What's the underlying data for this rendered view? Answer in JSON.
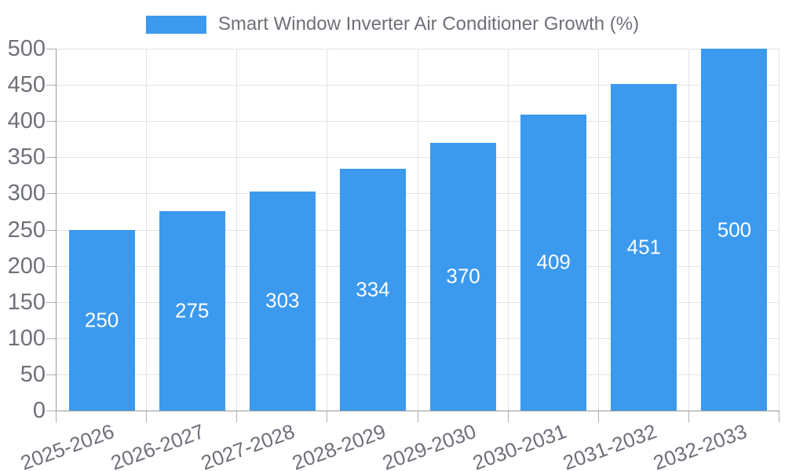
{
  "chart_data": {
    "type": "bar",
    "title": "Smart Window Inverter Air Conditioner Growth (%)",
    "legend": [
      "Smart Window Inverter Air Conditioner Growth (%)"
    ],
    "legend_position": "top-center",
    "categories": [
      "2025-2026",
      "2026-2027",
      "2027-2028",
      "2028-2029",
      "2029-2030",
      "2030-2031",
      "2031-2032",
      "2032-2033"
    ],
    "series": [
      {
        "name": "Smart Window Inverter Air Conditioner Growth (%)",
        "values": [
          250,
          275,
          303,
          334,
          370,
          409,
          451,
          500
        ]
      }
    ],
    "values": [
      250,
      275,
      303,
      334,
      370,
      409,
      451,
      500
    ],
    "value_labels": [
      "250",
      "275",
      "303",
      "334",
      "370",
      "409",
      "451",
      "500"
    ],
    "xlabel": "",
    "ylabel": "",
    "ylim": [
      0,
      500
    ],
    "yticks": [
      0,
      50,
      100,
      150,
      200,
      250,
      300,
      350,
      400,
      450,
      500
    ],
    "grid": true,
    "x_label_rotation_deg": -20,
    "colors": {
      "bar": "#3B99EE",
      "value_label": "#FFFFFF",
      "grid": "#E3E3E3",
      "axis": "#999999",
      "tick": "#B0B0B0",
      "axis_label": "#6E7079",
      "background": "#FFFFFF"
    }
  }
}
